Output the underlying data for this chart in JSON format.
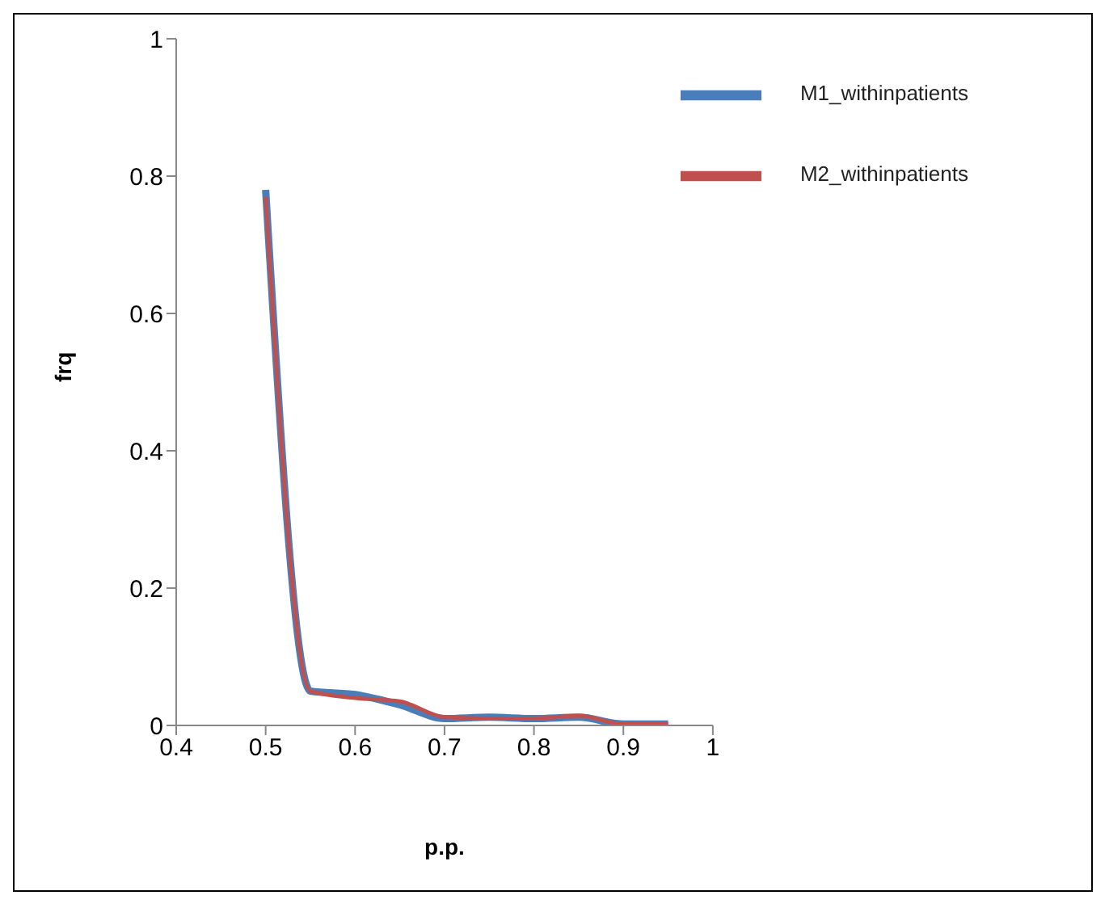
{
  "chart_data": {
    "type": "line",
    "xlabel": "p.p.",
    "ylabel": "frq",
    "x": [
      0.5,
      0.55,
      0.6,
      0.65,
      0.7,
      0.75,
      0.8,
      0.85,
      0.9,
      0.95
    ],
    "series": [
      {
        "name": "M1_withinpatients",
        "color": "#4a7ebb",
        "values": [
          0.78,
          0.05,
          0.045,
          0.03,
          0.01,
          0.012,
          0.01,
          0.012,
          0.002,
          0.002
        ]
      },
      {
        "name": "M2_withinpatients",
        "color": "#c0504d",
        "values": [
          0.77,
          0.05,
          0.04,
          0.035,
          0.012,
          0.01,
          0.01,
          0.014,
          0.002,
          0.002
        ]
      }
    ],
    "xlim": [
      0.4,
      1
    ],
    "xticks": [
      0.4,
      0.5,
      0.6,
      0.7,
      0.8,
      0.9,
      1
    ],
    "ylim": [
      0,
      1
    ],
    "yticks": [
      0,
      0.2,
      0.4,
      0.6,
      0.8,
      1
    ],
    "grid": false,
    "legend": "top right",
    "marker": "none",
    "line_style": "solid"
  }
}
